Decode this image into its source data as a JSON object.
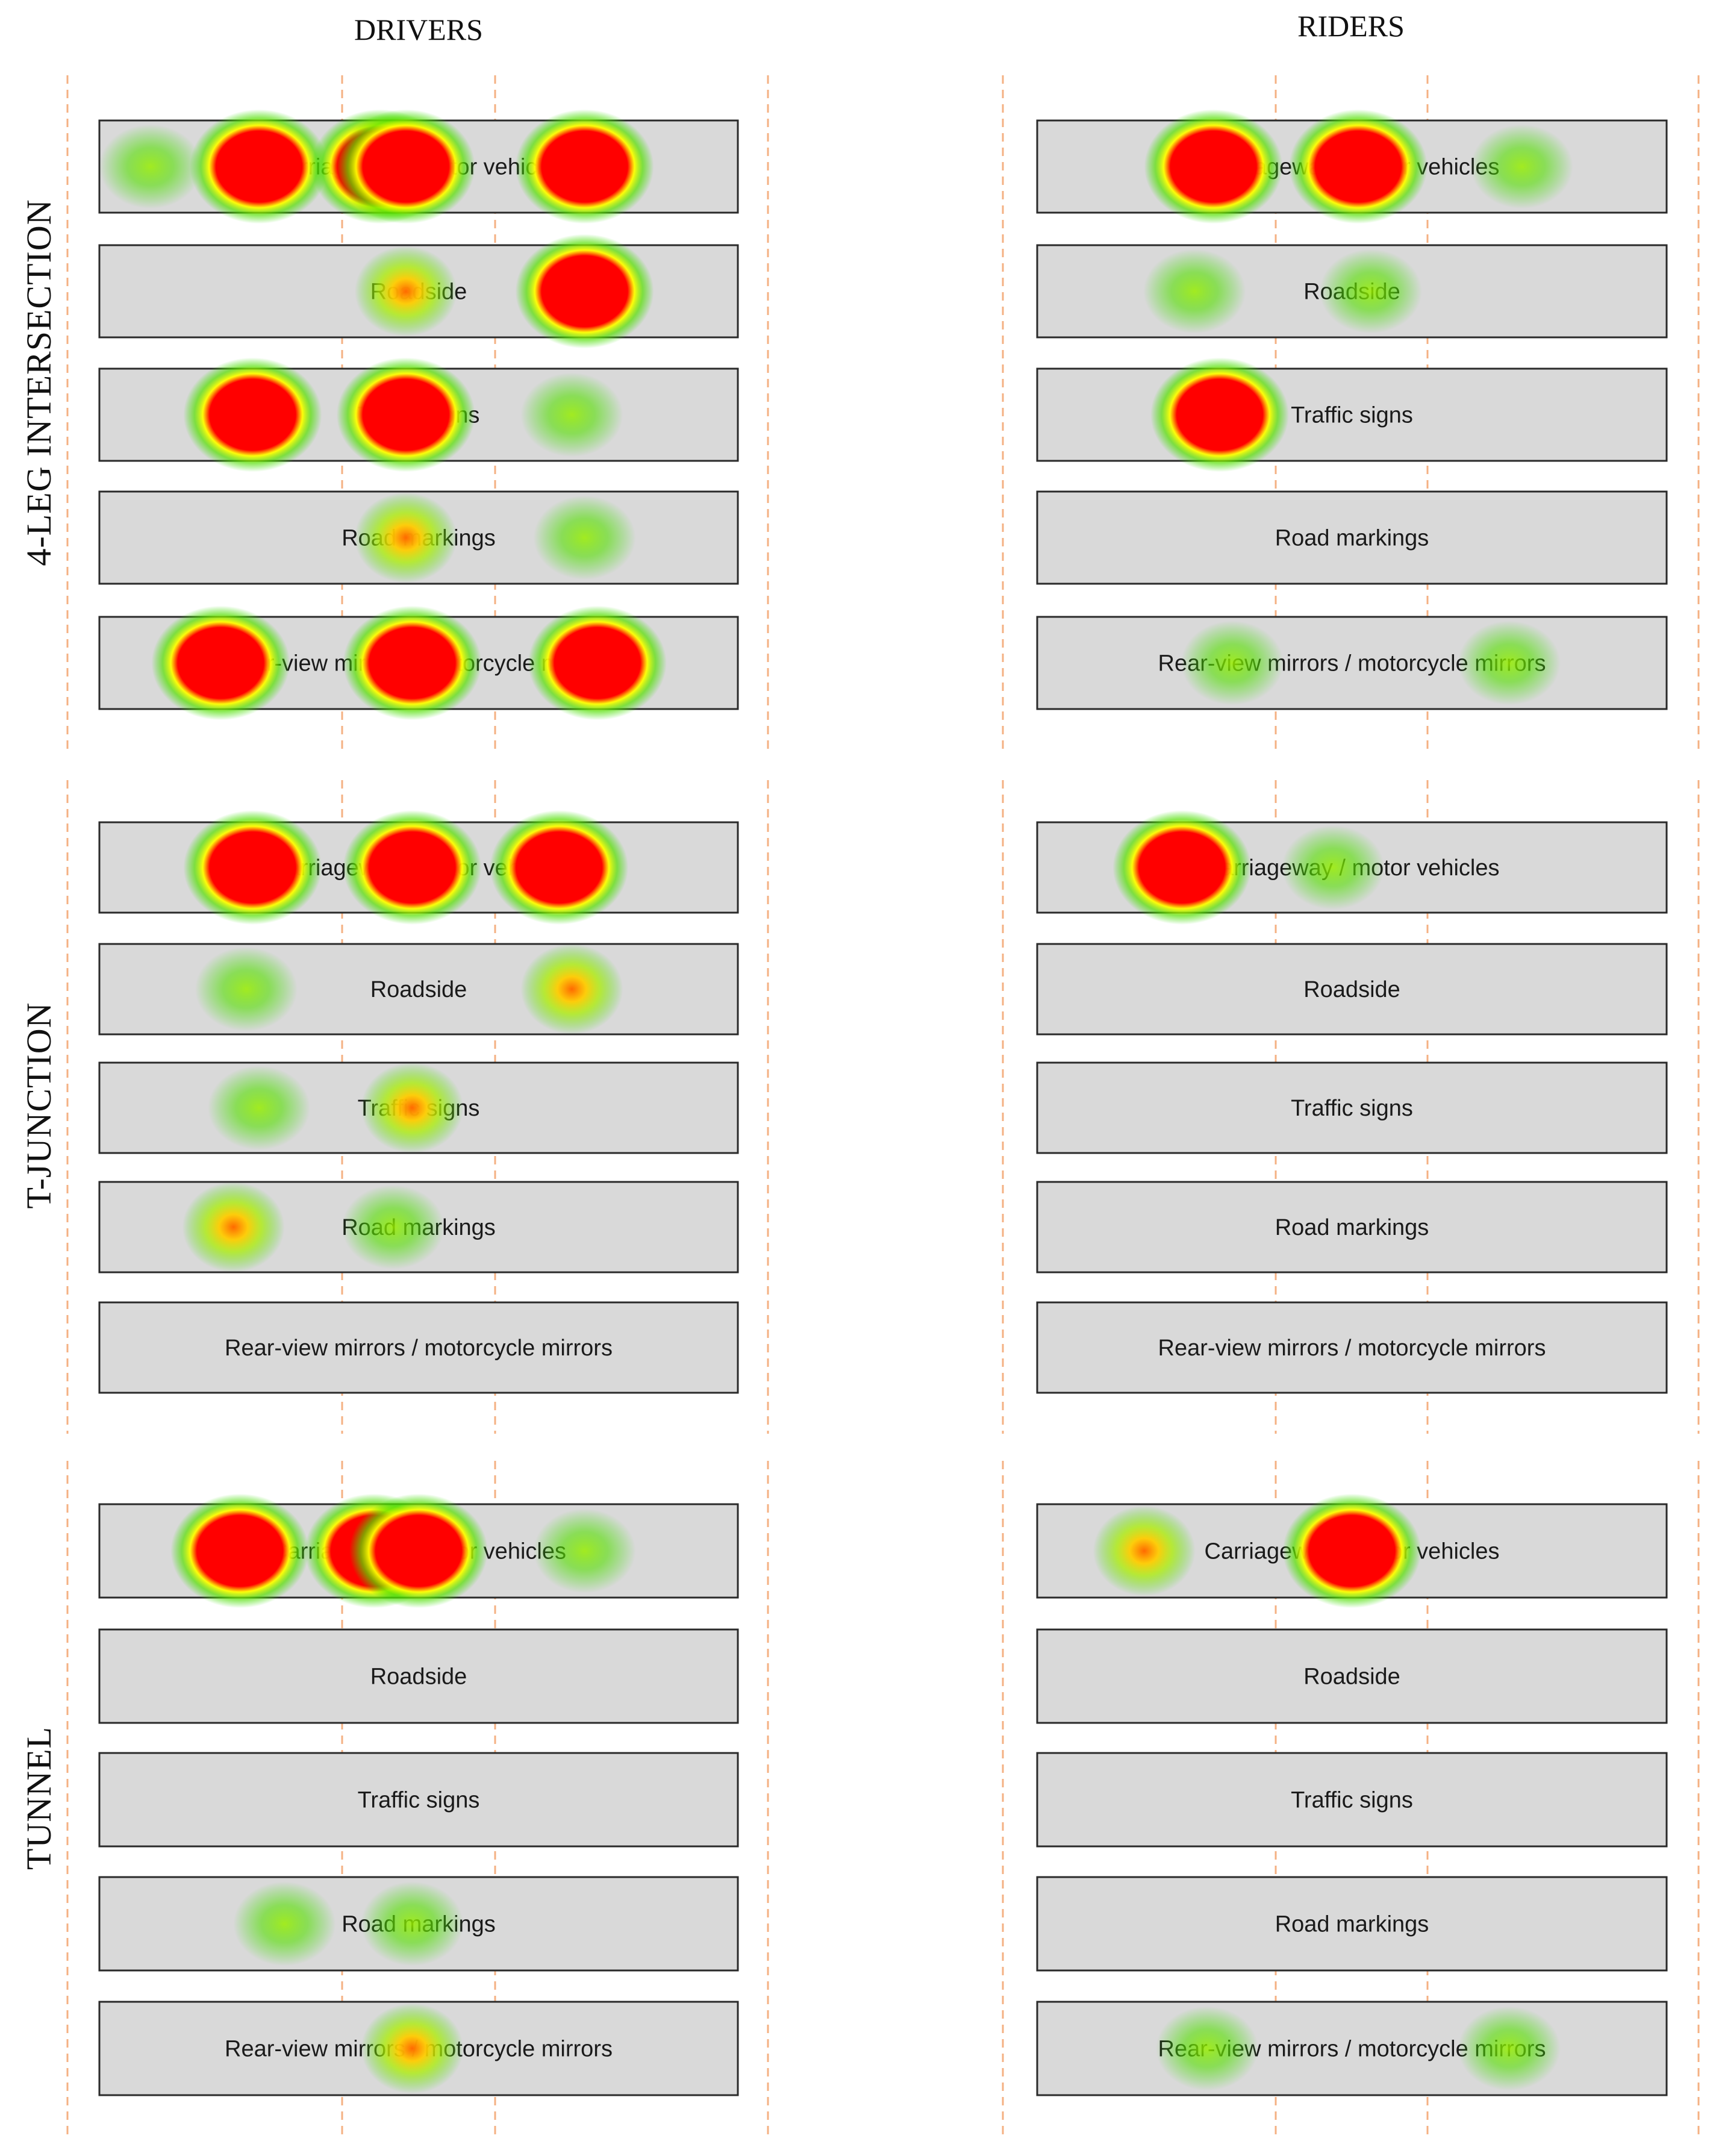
{
  "columns": [
    "DRIVERS",
    "RIDERS"
  ],
  "rows": [
    "4-LEG INTERSECTION",
    "T-JUNCTION",
    "TUNNEL"
  ],
  "aoi_labels": [
    "Carriageway / motor vehicles",
    "Roadside",
    "Traffic signs",
    "Road markings",
    "Rear-view mirrors / motorcycle mirrors"
  ],
  "colors": {
    "panel_fill": "#d9d9d9",
    "panel_stroke": "#2a2a2a",
    "guide": "#f4b183",
    "heat_high": "#ff0000",
    "heat_mid": "#ffff00",
    "heat_low": "#33dd00"
  },
  "heatmaps": [
    {
      "column": "DRIVERS",
      "row": "4-LEG INTERSECTION",
      "spots": [
        {
          "aoi": 0,
          "pos": 0.08,
          "level": "low"
        },
        {
          "aoi": 0,
          "pos": 0.25,
          "level": "high"
        },
        {
          "aoi": 0,
          "pos": 0.44,
          "level": "high"
        },
        {
          "aoi": 0,
          "pos": 0.48,
          "level": "high"
        },
        {
          "aoi": 0,
          "pos": 0.76,
          "level": "high"
        },
        {
          "aoi": 1,
          "pos": 0.48,
          "level": "medium"
        },
        {
          "aoi": 1,
          "pos": 0.76,
          "level": "high"
        },
        {
          "aoi": 2,
          "pos": 0.24,
          "level": "high"
        },
        {
          "aoi": 2,
          "pos": 0.48,
          "level": "high"
        },
        {
          "aoi": 2,
          "pos": 0.74,
          "level": "low"
        },
        {
          "aoi": 3,
          "pos": 0.48,
          "level": "medium"
        },
        {
          "aoi": 3,
          "pos": 0.76,
          "level": "low"
        },
        {
          "aoi": 4,
          "pos": 0.19,
          "level": "high"
        },
        {
          "aoi": 4,
          "pos": 0.49,
          "level": "high"
        },
        {
          "aoi": 4,
          "pos": 0.78,
          "level": "high"
        }
      ]
    },
    {
      "column": "RIDERS",
      "row": "4-LEG INTERSECTION",
      "spots": [
        {
          "aoi": 0,
          "pos": 0.28,
          "level": "high"
        },
        {
          "aoi": 0,
          "pos": 0.51,
          "level": "high"
        },
        {
          "aoi": 0,
          "pos": 0.77,
          "level": "low"
        },
        {
          "aoi": 1,
          "pos": 0.25,
          "level": "low"
        },
        {
          "aoi": 1,
          "pos": 0.53,
          "level": "low"
        },
        {
          "aoi": 2,
          "pos": 0.29,
          "level": "high"
        },
        {
          "aoi": 4,
          "pos": 0.31,
          "level": "low"
        },
        {
          "aoi": 4,
          "pos": 0.75,
          "level": "low"
        }
      ]
    },
    {
      "column": "DRIVERS",
      "row": "T-JUNCTION",
      "spots": [
        {
          "aoi": 0,
          "pos": 0.24,
          "level": "high"
        },
        {
          "aoi": 0,
          "pos": 0.49,
          "level": "high"
        },
        {
          "aoi": 0,
          "pos": 0.72,
          "level": "high"
        },
        {
          "aoi": 1,
          "pos": 0.23,
          "level": "low"
        },
        {
          "aoi": 1,
          "pos": 0.74,
          "level": "medium"
        },
        {
          "aoi": 2,
          "pos": 0.49,
          "level": "medium"
        },
        {
          "aoi": 2,
          "pos": 0.25,
          "level": "low"
        },
        {
          "aoi": 3,
          "pos": 0.21,
          "level": "medium"
        },
        {
          "aoi": 3,
          "pos": 0.46,
          "level": "low"
        }
      ]
    },
    {
      "column": "RIDERS",
      "row": "T-JUNCTION",
      "spots": [
        {
          "aoi": 0,
          "pos": 0.23,
          "level": "high"
        },
        {
          "aoi": 0,
          "pos": 0.47,
          "level": "low"
        }
      ]
    },
    {
      "column": "DRIVERS",
      "row": "TUNNEL",
      "spots": [
        {
          "aoi": 0,
          "pos": 0.22,
          "level": "high"
        },
        {
          "aoi": 0,
          "pos": 0.43,
          "level": "high"
        },
        {
          "aoi": 0,
          "pos": 0.5,
          "level": "high"
        },
        {
          "aoi": 0,
          "pos": 0.76,
          "level": "low"
        },
        {
          "aoi": 3,
          "pos": 0.29,
          "level": "low"
        },
        {
          "aoi": 3,
          "pos": 0.49,
          "level": "low"
        },
        {
          "aoi": 4,
          "pos": 0.49,
          "level": "medium"
        }
      ]
    },
    {
      "column": "RIDERS",
      "row": "TUNNEL",
      "spots": [
        {
          "aoi": 0,
          "pos": 0.17,
          "level": "medium"
        },
        {
          "aoi": 0,
          "pos": 0.5,
          "level": "high"
        },
        {
          "aoi": 4,
          "pos": 0.27,
          "level": "low"
        },
        {
          "aoi": 4,
          "pos": 0.75,
          "level": "low"
        }
      ]
    }
  ]
}
